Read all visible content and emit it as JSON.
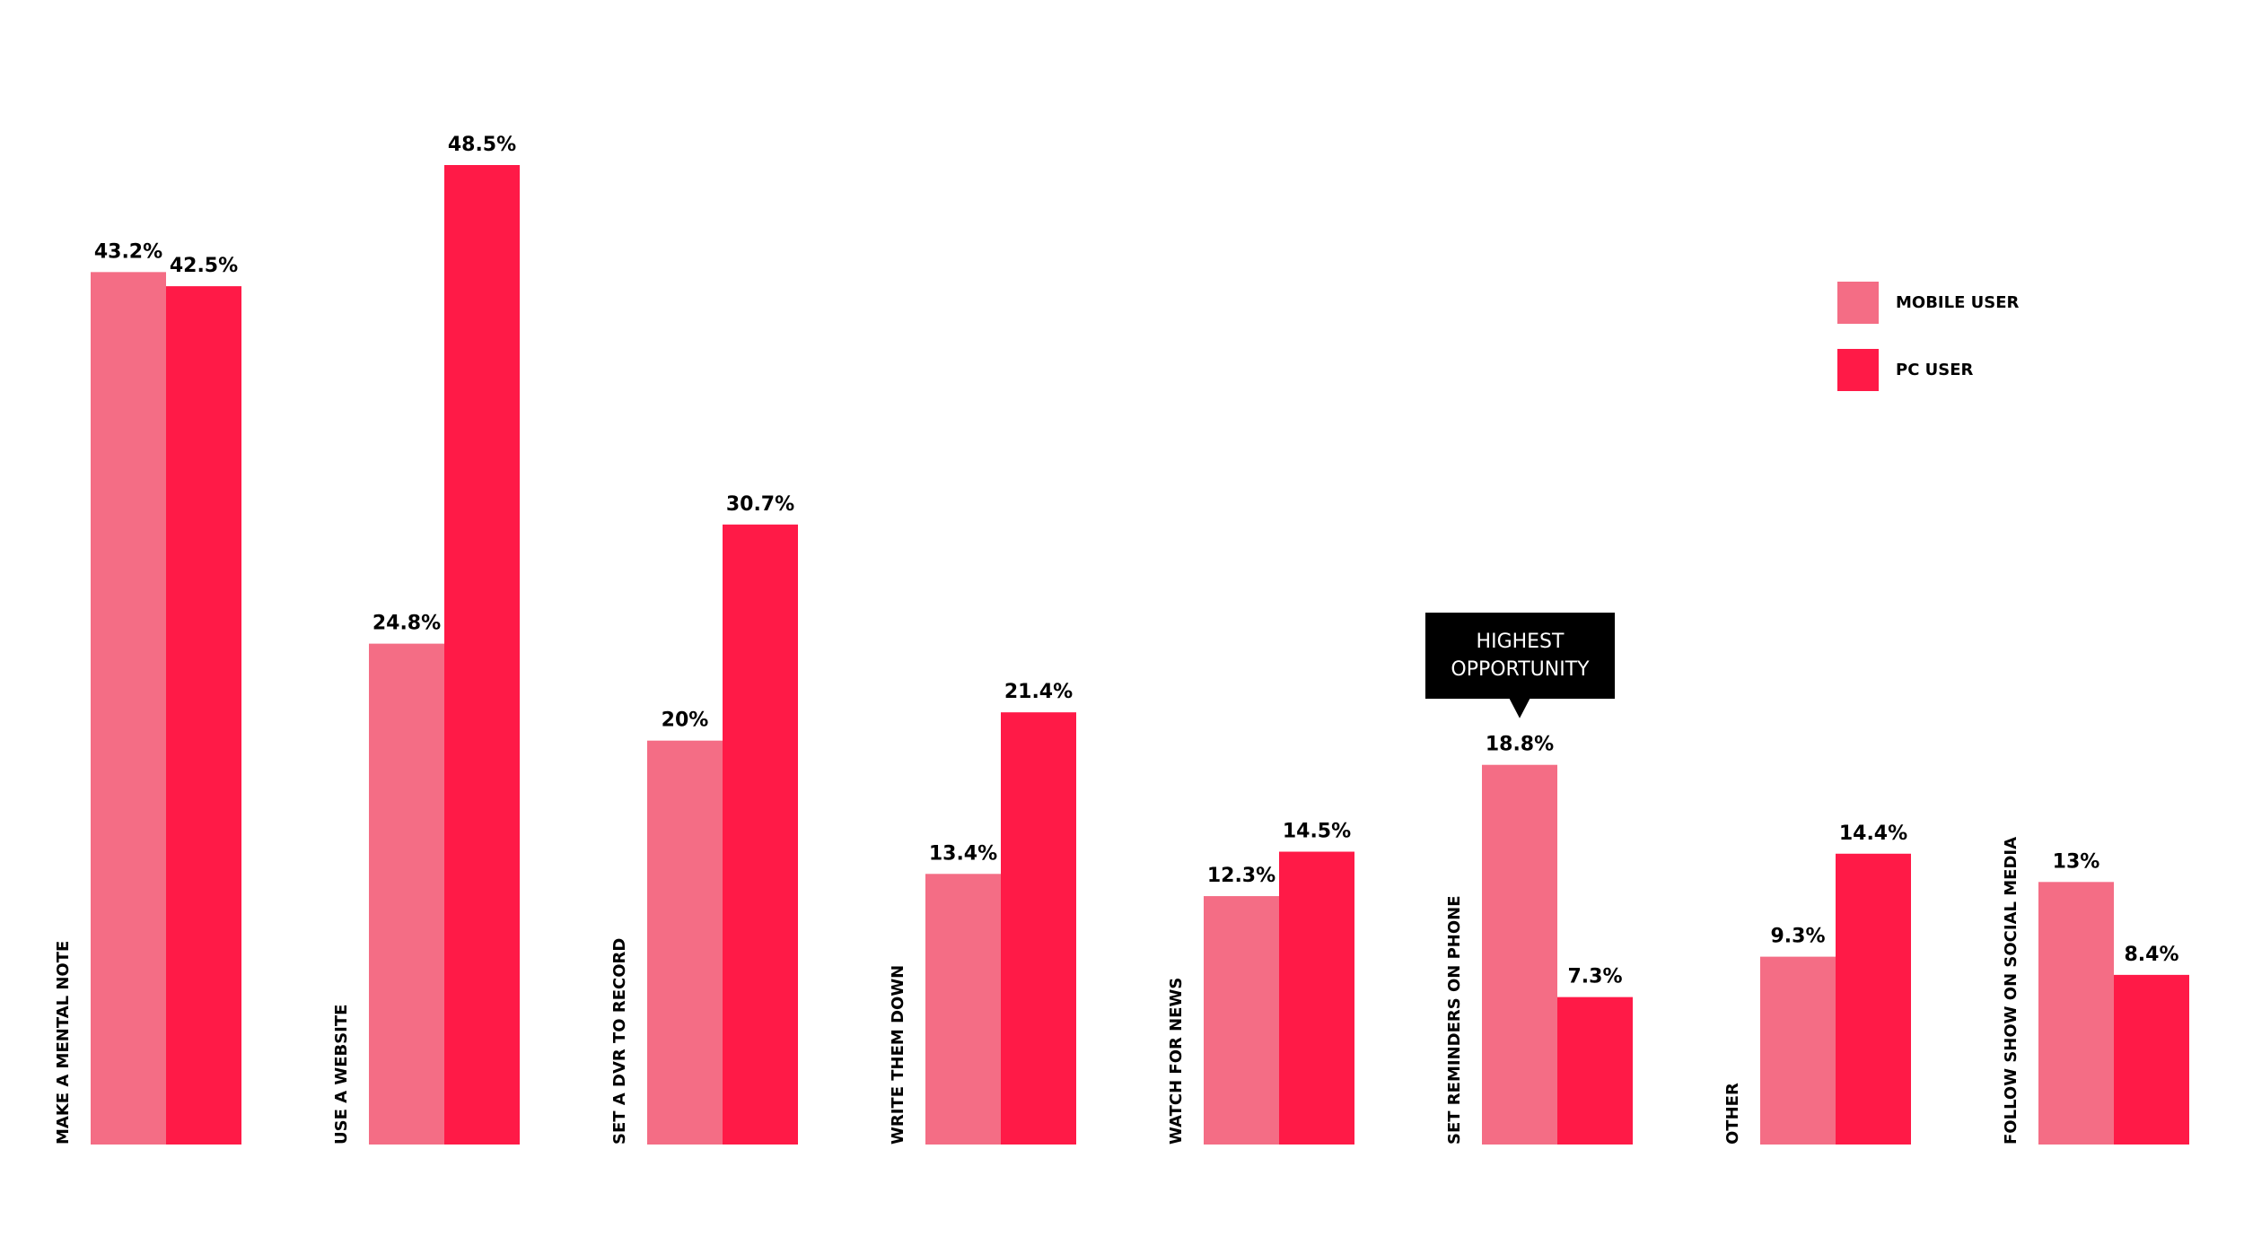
{
  "chart_data": {
    "type": "bar",
    "categories": [
      "MAKE A MENTAL NOTE",
      "USE A WEBSITE",
      "SET A DVR TO RECORD",
      "WRITE THEM DOWN",
      "WATCH FOR NEWS",
      "SET REMINDERS ON PHONE",
      "OTHER",
      "FOLLOW SHOW ON SOCIAL MEDIA"
    ],
    "series": [
      {
        "name": "MOBILE USER",
        "color": "#f46d85",
        "values": [
          43.2,
          24.8,
          20,
          13.4,
          12.3,
          18.8,
          9.3,
          13
        ],
        "value_labels": [
          "43.2%",
          "24.8%",
          "20%",
          "13.4%",
          "12.3%",
          "18.8%",
          "9.3%",
          "13%"
        ]
      },
      {
        "name": "PC USER",
        "color": "#ff1a47",
        "values": [
          42.5,
          48.5,
          30.7,
          21.4,
          14.5,
          7.3,
          14.4,
          8.4
        ],
        "value_labels": [
          "42.5%",
          "48.5%",
          "30.7%",
          "21.4%",
          "14.5%",
          "7.3%",
          "14.4%",
          "8.4%"
        ]
      }
    ],
    "legend": "top-right",
    "annotation": {
      "text": "HIGHEST OPPORTUNITY",
      "category": 5,
      "series": 0
    }
  }
}
